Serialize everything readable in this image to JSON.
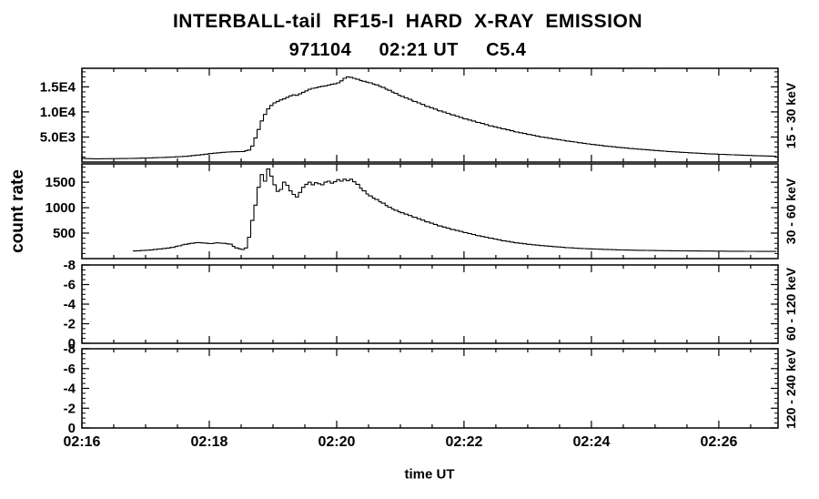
{
  "title": "INTERBALL-tail  RF15-I  HARD  X-RAY  EMISSION",
  "subtitle": "971104     02:21 UT     C5.4",
  "chart_data": {
    "type": "line",
    "title": "INTERBALL-tail RF15-I HARD X-RAY EMISSION",
    "subtitle": "971104 02:21 UT C5.4",
    "xlabel": "time UT",
    "ylabel": "count rate",
    "x_unit": "minutes after 02:16 UT",
    "xlim": [
      0,
      10.93
    ],
    "x_ticks": [
      "02:16",
      "02:18",
      "02:20",
      "02:22",
      "02:24",
      "02:26"
    ],
    "x_tick_minutes": [
      0,
      2,
      4,
      6,
      8,
      10
    ],
    "grid": false,
    "legend": "none",
    "panels": [
      {
        "label": "15 - 30 keV",
        "ylim": [
          0,
          18700
        ],
        "y_ticks": [
          5000,
          10000,
          15000
        ],
        "y_tick_labels": [
          "5.0E3",
          "1.0E4",
          "1.5E4"
        ],
        "y_minor_step": 1000,
        "points": [
          [
            0.0,
            700
          ],
          [
            0.2,
            650
          ],
          [
            0.4,
            680
          ],
          [
            0.6,
            700
          ],
          [
            0.8,
            750
          ],
          [
            1.0,
            820
          ],
          [
            1.2,
            900
          ],
          [
            1.4,
            1000
          ],
          [
            1.6,
            1150
          ],
          [
            1.8,
            1400
          ],
          [
            2.0,
            1700
          ],
          [
            2.2,
            1950
          ],
          [
            2.35,
            2050
          ],
          [
            2.5,
            2100
          ],
          [
            2.6,
            2400
          ],
          [
            2.65,
            3200
          ],
          [
            2.7,
            4800
          ],
          [
            2.75,
            6500
          ],
          [
            2.8,
            8200
          ],
          [
            2.85,
            9500
          ],
          [
            2.9,
            10600
          ],
          [
            2.95,
            11300
          ],
          [
            3.0,
            11800
          ],
          [
            3.05,
            12100
          ],
          [
            3.1,
            12400
          ],
          [
            3.15,
            12600
          ],
          [
            3.2,
            12900
          ],
          [
            3.25,
            13200
          ],
          [
            3.3,
            13400
          ],
          [
            3.35,
            13300
          ],
          [
            3.4,
            13600
          ],
          [
            3.45,
            13900
          ],
          [
            3.5,
            14200
          ],
          [
            3.55,
            14500
          ],
          [
            3.6,
            14700
          ],
          [
            3.65,
            14800
          ],
          [
            3.7,
            15000
          ],
          [
            3.75,
            15100
          ],
          [
            3.8,
            15200
          ],
          [
            3.85,
            15350
          ],
          [
            3.9,
            15500
          ],
          [
            3.95,
            15600
          ],
          [
            4.0,
            15800
          ],
          [
            4.05,
            16200
          ],
          [
            4.1,
            16700
          ],
          [
            4.15,
            17000
          ],
          [
            4.2,
            16900
          ],
          [
            4.25,
            16700
          ],
          [
            4.3,
            16500
          ],
          [
            4.4,
            16100
          ],
          [
            4.5,
            15800
          ],
          [
            4.6,
            15400
          ],
          [
            4.7,
            14900
          ],
          [
            4.8,
            14300
          ],
          [
            4.9,
            13700
          ],
          [
            5.0,
            13100
          ],
          [
            5.2,
            12100
          ],
          [
            5.4,
            11100
          ],
          [
            5.6,
            10200
          ],
          [
            5.8,
            9400
          ],
          [
            6.0,
            8600
          ],
          [
            6.2,
            7900
          ],
          [
            6.4,
            7200
          ],
          [
            6.6,
            6600
          ],
          [
            6.8,
            6000
          ],
          [
            7.0,
            5500
          ],
          [
            7.2,
            5000
          ],
          [
            7.4,
            4600
          ],
          [
            7.6,
            4200
          ],
          [
            7.8,
            3850
          ],
          [
            8.0,
            3500
          ],
          [
            8.2,
            3200
          ],
          [
            8.4,
            2950
          ],
          [
            8.6,
            2700
          ],
          [
            8.8,
            2500
          ],
          [
            9.0,
            2300
          ],
          [
            9.2,
            2100
          ],
          [
            9.4,
            1950
          ],
          [
            9.6,
            1800
          ],
          [
            9.8,
            1650
          ],
          [
            10.0,
            1550
          ],
          [
            10.2,
            1450
          ],
          [
            10.4,
            1350
          ],
          [
            10.6,
            1250
          ],
          [
            10.9,
            1150
          ]
        ]
      },
      {
        "label": "30 - 60 keV",
        "ylim": [
          0,
          1860
        ],
        "y_ticks": [
          500,
          1000,
          1500
        ],
        "y_tick_labels": [
          "500",
          "1000",
          "1500"
        ],
        "y_minor_step": 100,
        "points": [
          [
            0.8,
            150
          ],
          [
            1.0,
            165
          ],
          [
            1.2,
            190
          ],
          [
            1.4,
            220
          ],
          [
            1.5,
            250
          ],
          [
            1.6,
            280
          ],
          [
            1.7,
            300
          ],
          [
            1.8,
            315
          ],
          [
            1.9,
            305
          ],
          [
            2.0,
            295
          ],
          [
            2.1,
            310
          ],
          [
            2.2,
            300
          ],
          [
            2.3,
            285
          ],
          [
            2.4,
            210
          ],
          [
            2.5,
            180
          ],
          [
            2.55,
            210
          ],
          [
            2.6,
            420
          ],
          [
            2.65,
            750
          ],
          [
            2.7,
            1050
          ],
          [
            2.75,
            1400
          ],
          [
            2.8,
            1650
          ],
          [
            2.85,
            1520
          ],
          [
            2.9,
            1760
          ],
          [
            2.95,
            1620
          ],
          [
            3.0,
            1450
          ],
          [
            3.05,
            1320
          ],
          [
            3.1,
            1360
          ],
          [
            3.15,
            1500
          ],
          [
            3.2,
            1440
          ],
          [
            3.25,
            1330
          ],
          [
            3.3,
            1260
          ],
          [
            3.35,
            1210
          ],
          [
            3.4,
            1300
          ],
          [
            3.45,
            1400
          ],
          [
            3.5,
            1460
          ],
          [
            3.55,
            1500
          ],
          [
            3.6,
            1450
          ],
          [
            3.65,
            1490
          ],
          [
            3.7,
            1470
          ],
          [
            3.75,
            1450
          ],
          [
            3.8,
            1500
          ],
          [
            3.85,
            1520
          ],
          [
            3.9,
            1480
          ],
          [
            3.95,
            1510
          ],
          [
            4.0,
            1550
          ],
          [
            4.05,
            1520
          ],
          [
            4.1,
            1560
          ],
          [
            4.15,
            1530
          ],
          [
            4.2,
            1560
          ],
          [
            4.25,
            1510
          ],
          [
            4.3,
            1460
          ],
          [
            4.4,
            1330
          ],
          [
            4.5,
            1230
          ],
          [
            4.6,
            1160
          ],
          [
            4.7,
            1090
          ],
          [
            4.8,
            1010
          ],
          [
            4.9,
            950
          ],
          [
            5.0,
            900
          ],
          [
            5.2,
            810
          ],
          [
            5.4,
            720
          ],
          [
            5.6,
            640
          ],
          [
            5.8,
            570
          ],
          [
            6.0,
            510
          ],
          [
            6.2,
            450
          ],
          [
            6.4,
            400
          ],
          [
            6.6,
            350
          ],
          [
            6.8,
            310
          ],
          [
            7.0,
            280
          ],
          [
            7.2,
            255
          ],
          [
            7.4,
            235
          ],
          [
            7.6,
            215
          ],
          [
            7.8,
            200
          ],
          [
            8.0,
            190
          ],
          [
            8.2,
            180
          ],
          [
            8.4,
            172
          ],
          [
            8.6,
            166
          ],
          [
            9.0,
            158
          ],
          [
            9.4,
            152
          ],
          [
            9.8,
            148
          ],
          [
            10.2,
            145
          ],
          [
            10.6,
            142
          ],
          [
            10.9,
            140
          ]
        ]
      },
      {
        "label": "60 - 120 keV",
        "ylim": [
          0,
          -8
        ],
        "y_ticks": [
          0,
          -2,
          -4,
          -6,
          -8
        ],
        "y_tick_labels": [
          "0",
          "-2",
          "-4",
          "-6",
          "-8"
        ],
        "y_minor_step": 0.5,
        "points": []
      },
      {
        "label": "120 - 240 keV",
        "ylim": [
          0,
          -8
        ],
        "y_ticks": [
          0,
          -2,
          -4,
          -6,
          -8
        ],
        "y_tick_labels": [
          "0",
          "-2",
          "-4",
          "-6",
          "-8"
        ],
        "y_minor_step": 0.5,
        "points": []
      }
    ]
  }
}
